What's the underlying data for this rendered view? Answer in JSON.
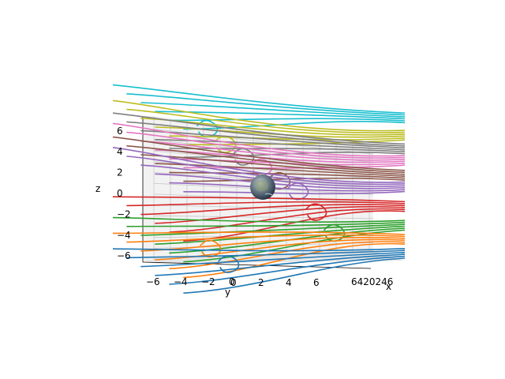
{
  "chart_data": {
    "type": "line",
    "title": "",
    "xlabel": "x",
    "ylabel": "y",
    "zlabel": "z",
    "projection": "3d",
    "grid": true,
    "x_ticks": [
      "0",
      "2",
      "4",
      "6"
    ],
    "y_ticks": [
      "−6",
      "−4",
      "−2",
      "0"
    ],
    "z_ticks": [
      "−6",
      "−4",
      "−2",
      "0",
      "2",
      "4",
      "6"
    ],
    "x_axis_overlap_text": "6420246",
    "center_object": "earth-sphere",
    "series": [
      {
        "color": "#17becf",
        "z": 6.5
      },
      {
        "color": "#bcbd22",
        "z": 5.0
      },
      {
        "color": "#7f7f7f",
        "z": 3.8
      },
      {
        "color": "#e377c2",
        "z": 2.8
      },
      {
        "color": "#8c564b",
        "z": 1.5
      },
      {
        "color": "#9467bd",
        "z": 0.5
      },
      {
        "color": "#d62728",
        "z": -1.5
      },
      {
        "color": "#2ca02c",
        "z": -3.5
      },
      {
        "color": "#ff7f0e",
        "z": -5.0
      },
      {
        "color": "#1f77b4",
        "z": -6.5
      }
    ]
  }
}
